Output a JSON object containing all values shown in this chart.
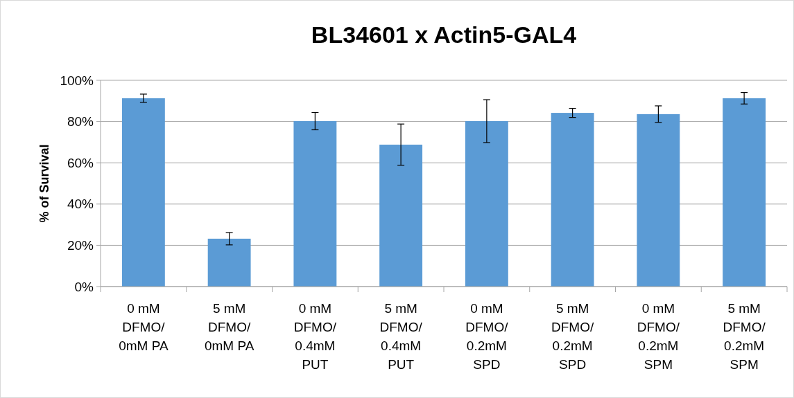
{
  "chart_data": {
    "type": "bar",
    "title": "BL34601 x Actin5-GAL4",
    "ylabel": "% of Survival",
    "categories": [
      "0 mM\nDFMO/\n0mM PA",
      "5 mM\nDFMO/\n0mM PA",
      "0 mM\nDFMO/\n0.4mM\nPUT",
      "5 mM\nDFMO/\n0.4mM\nPUT",
      "0 mM\nDFMO/\n0.2mM\nSPD",
      "5 mM\nDFMO/\n0.2mM\nSPD",
      "0 mM\nDFMO/\n0.2mM\nSPM",
      "5 mM\nDFMO/\n0.2mM\nSPM"
    ],
    "values": [
      91.3,
      23.2,
      80.2,
      68.8,
      80.2,
      84.2,
      83.6,
      91.3
    ],
    "errors": [
      2,
      3,
      4.2,
      10,
      10.4,
      2.2,
      4,
      2.8
    ],
    "color": "#5b9bd5",
    "ylim": [
      0,
      100
    ],
    "yticks": [
      {
        "value": 0,
        "label": "0%"
      },
      {
        "value": 20,
        "label": "20%"
      },
      {
        "value": 40,
        "label": "40%"
      },
      {
        "value": 60,
        "label": "60%"
      },
      {
        "value": 80,
        "label": "80%"
      },
      {
        "value": 100,
        "label": "100%"
      }
    ],
    "grid": "y"
  }
}
